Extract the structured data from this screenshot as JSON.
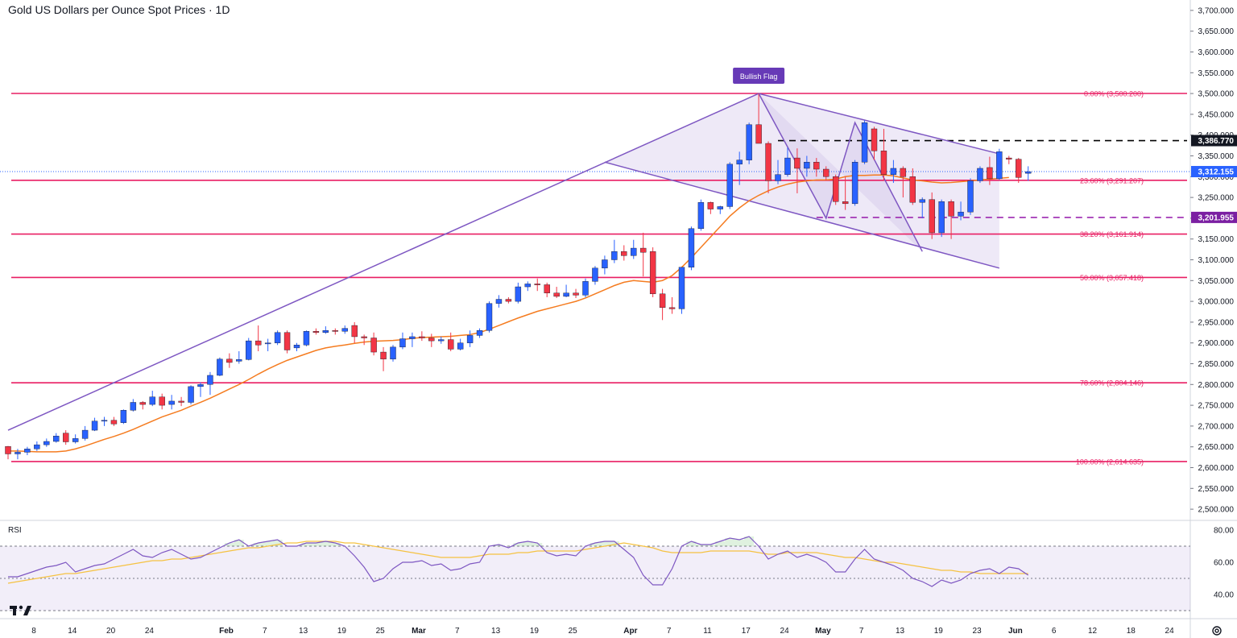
{
  "header": {
    "title": "Gold US Dollars per Ounce Spot Prices · 1D"
  },
  "colors": {
    "up": "#2962ff",
    "down": "#f23645",
    "fib": "#e91e63",
    "channel": "#7e57c2",
    "ema": "#f57c20",
    "rsi_line": "#7e57c2",
    "rsi_ma": "#f5c242",
    "resistance": "#000000",
    "support": "#9c27b0",
    "last_price": "#2962ff"
  },
  "chart_data": {
    "type": "candlestick",
    "price_axis": {
      "min": 2475,
      "max": 3725,
      "ticks": [
        "3,700.000",
        "3,650.000",
        "3,600.000",
        "3,550.000",
        "3,500.000",
        "3,450.000",
        "3,400.000",
        "3,350.000",
        "3,300.000",
        "3,250.000",
        "3,200.000",
        "3,150.000",
        "3,100.000",
        "3,050.000",
        "3,000.000",
        "2,950.000",
        "2,900.000",
        "2,850.000",
        "2,800.000",
        "2,750.000",
        "2,700.000",
        "2,650.000",
        "2,600.000",
        "2,550.000",
        "2,500.000"
      ],
      "tick_values": [
        3700,
        3650,
        3600,
        3550,
        3500,
        3450,
        3400,
        3350,
        3300,
        3250,
        3200,
        3150,
        3100,
        3050,
        3000,
        2950,
        2900,
        2850,
        2800,
        2750,
        2700,
        2650,
        2600,
        2550,
        2500
      ]
    },
    "time_axis": {
      "labels": [
        "8",
        "14",
        "20",
        "24",
        "Feb",
        "7",
        "13",
        "19",
        "25",
        "Mar",
        "7",
        "13",
        "19",
        "25",
        "Apr",
        "7",
        "11",
        "17",
        "24",
        "May",
        "7",
        "13",
        "19",
        "23",
        "Jun",
        "6",
        "12",
        "18",
        "24"
      ],
      "label_index": [
        0,
        4,
        8,
        12,
        20,
        24,
        28,
        32,
        36,
        40,
        44,
        48,
        52,
        56,
        62,
        66,
        70,
        74,
        78,
        82,
        86,
        90,
        94,
        98,
        102,
        106,
        110,
        114,
        118
      ]
    },
    "candles": [
      {
        "o": 2651,
        "h": 2652,
        "l": 2620,
        "c": 2633
      },
      {
        "o": 2633,
        "h": 2645,
        "l": 2620,
        "c": 2637
      },
      {
        "o": 2637,
        "h": 2650,
        "l": 2630,
        "c": 2645
      },
      {
        "o": 2645,
        "h": 2663,
        "l": 2640,
        "c": 2655
      },
      {
        "o": 2655,
        "h": 2670,
        "l": 2650,
        "c": 2663
      },
      {
        "o": 2663,
        "h": 2683,
        "l": 2660,
        "c": 2676
      },
      {
        "o": 2683,
        "h": 2690,
        "l": 2655,
        "c": 2662
      },
      {
        "o": 2662,
        "h": 2680,
        "l": 2658,
        "c": 2670
      },
      {
        "o": 2670,
        "h": 2700,
        "l": 2665,
        "c": 2690
      },
      {
        "o": 2690,
        "h": 2720,
        "l": 2688,
        "c": 2712
      },
      {
        "o": 2712,
        "h": 2722,
        "l": 2700,
        "c": 2714
      },
      {
        "o": 2714,
        "h": 2722,
        "l": 2700,
        "c": 2705
      },
      {
        "o": 2708,
        "h": 2740,
        "l": 2705,
        "c": 2738
      },
      {
        "o": 2738,
        "h": 2765,
        "l": 2735,
        "c": 2757
      },
      {
        "o": 2757,
        "h": 2760,
        "l": 2740,
        "c": 2752
      },
      {
        "o": 2752,
        "h": 2785,
        "l": 2748,
        "c": 2770
      },
      {
        "o": 2770,
        "h": 2778,
        "l": 2740,
        "c": 2750
      },
      {
        "o": 2752,
        "h": 2775,
        "l": 2740,
        "c": 2760
      },
      {
        "o": 2760,
        "h": 2770,
        "l": 2748,
        "c": 2757
      },
      {
        "o": 2757,
        "h": 2798,
        "l": 2752,
        "c": 2795
      },
      {
        "o": 2795,
        "h": 2805,
        "l": 2770,
        "c": 2800
      },
      {
        "o": 2800,
        "h": 2830,
        "l": 2775,
        "c": 2822
      },
      {
        "o": 2822,
        "h": 2865,
        "l": 2820,
        "c": 2861
      },
      {
        "o": 2861,
        "h": 2875,
        "l": 2840,
        "c": 2853
      },
      {
        "o": 2856,
        "h": 2880,
        "l": 2850,
        "c": 2860
      },
      {
        "o": 2860,
        "h": 2912,
        "l": 2858,
        "c": 2905
      },
      {
        "o": 2905,
        "h": 2942,
        "l": 2880,
        "c": 2895
      },
      {
        "o": 2898,
        "h": 2910,
        "l": 2880,
        "c": 2900
      },
      {
        "o": 2900,
        "h": 2930,
        "l": 2895,
        "c": 2925
      },
      {
        "o": 2925,
        "h": 2930,
        "l": 2875,
        "c": 2883
      },
      {
        "o": 2888,
        "h": 2900,
        "l": 2880,
        "c": 2895
      },
      {
        "o": 2895,
        "h": 2930,
        "l": 2892,
        "c": 2928
      },
      {
        "o": 2928,
        "h": 2935,
        "l": 2920,
        "c": 2925
      },
      {
        "o": 2925,
        "h": 2940,
        "l": 2922,
        "c": 2930
      },
      {
        "o": 2930,
        "h": 2935,
        "l": 2920,
        "c": 2928
      },
      {
        "o": 2928,
        "h": 2942,
        "l": 2922,
        "c": 2935
      },
      {
        "o": 2942,
        "h": 2950,
        "l": 2900,
        "c": 2915
      },
      {
        "o": 2915,
        "h": 2920,
        "l": 2895,
        "c": 2912
      },
      {
        "o": 2912,
        "h": 2925,
        "l": 2870,
        "c": 2878
      },
      {
        "o": 2878,
        "h": 2890,
        "l": 2832,
        "c": 2861
      },
      {
        "o": 2861,
        "h": 2895,
        "l": 2855,
        "c": 2890
      },
      {
        "o": 2890,
        "h": 2925,
        "l": 2885,
        "c": 2910
      },
      {
        "o": 2910,
        "h": 2925,
        "l": 2890,
        "c": 2915
      },
      {
        "o": 2915,
        "h": 2928,
        "l": 2905,
        "c": 2912
      },
      {
        "o": 2912,
        "h": 2922,
        "l": 2890,
        "c": 2905
      },
      {
        "o": 2905,
        "h": 2915,
        "l": 2898,
        "c": 2908
      },
      {
        "o": 2908,
        "h": 2925,
        "l": 2880,
        "c": 2885
      },
      {
        "o": 2885,
        "h": 2910,
        "l": 2882,
        "c": 2900
      },
      {
        "o": 2900,
        "h": 2930,
        "l": 2890,
        "c": 2918
      },
      {
        "o": 2918,
        "h": 2935,
        "l": 2912,
        "c": 2930
      },
      {
        "o": 2930,
        "h": 3000,
        "l": 2925,
        "c": 2995
      },
      {
        "o": 2995,
        "h": 3015,
        "l": 2985,
        "c": 3005
      },
      {
        "o": 3005,
        "h": 3010,
        "l": 2995,
        "c": 3000
      },
      {
        "o": 3000,
        "h": 3045,
        "l": 2995,
        "c": 3035
      },
      {
        "o": 3035,
        "h": 3048,
        "l": 3025,
        "c": 3042
      },
      {
        "o": 3042,
        "h": 3055,
        "l": 3025,
        "c": 3040
      },
      {
        "o": 3040,
        "h": 3045,
        "l": 3010,
        "c": 3020
      },
      {
        "o": 3020,
        "h": 3035,
        "l": 3008,
        "c": 3012
      },
      {
        "o": 3012,
        "h": 3040,
        "l": 3010,
        "c": 3020
      },
      {
        "o": 3020,
        "h": 3030,
        "l": 3008,
        "c": 3015
      },
      {
        "o": 3015,
        "h": 3055,
        "l": 3010,
        "c": 3048
      },
      {
        "o": 3048,
        "h": 3085,
        "l": 3040,
        "c": 3080
      },
      {
        "o": 3080,
        "h": 3110,
        "l": 3065,
        "c": 3100
      },
      {
        "o": 3100,
        "h": 3148,
        "l": 3092,
        "c": 3120
      },
      {
        "o": 3120,
        "h": 3135,
        "l": 3098,
        "c": 3110
      },
      {
        "o": 3110,
        "h": 3148,
        "l": 3102,
        "c": 3128
      },
      {
        "o": 3128,
        "h": 3165,
        "l": 3060,
        "c": 3118
      },
      {
        "o": 3120,
        "h": 3130,
        "l": 3010,
        "c": 3018
      },
      {
        "o": 3018,
        "h": 3030,
        "l": 2955,
        "c": 2985
      },
      {
        "o": 2985,
        "h": 3010,
        "l": 2970,
        "c": 2982
      },
      {
        "o": 2982,
        "h": 3080,
        "l": 2970,
        "c": 3082
      },
      {
        "o": 3082,
        "h": 3180,
        "l": 3075,
        "c": 3175
      },
      {
        "o": 3175,
        "h": 3245,
        "l": 3170,
        "c": 3238
      },
      {
        "o": 3238,
        "h": 3240,
        "l": 3210,
        "c": 3222
      },
      {
        "o": 3222,
        "h": 3230,
        "l": 3210,
        "c": 3228
      },
      {
        "o": 3228,
        "h": 3335,
        "l": 3222,
        "c": 3330
      },
      {
        "o": 3330,
        "h": 3360,
        "l": 3280,
        "c": 3340
      },
      {
        "o": 3340,
        "h": 3430,
        "l": 3330,
        "c": 3425
      },
      {
        "o": 3425,
        "h": 3500,
        "l": 3380,
        "c": 3380
      },
      {
        "o": 3380,
        "h": 3385,
        "l": 3260,
        "c": 3290
      },
      {
        "o": 3290,
        "h": 3340,
        "l": 3282,
        "c": 3305
      },
      {
        "o": 3305,
        "h": 3370,
        "l": 3300,
        "c": 3345
      },
      {
        "o": 3345,
        "h": 3368,
        "l": 3260,
        "c": 3320
      },
      {
        "o": 3320,
        "h": 3350,
        "l": 3300,
        "c": 3335
      },
      {
        "o": 3335,
        "h": 3345,
        "l": 3300,
        "c": 3318
      },
      {
        "o": 3318,
        "h": 3325,
        "l": 3290,
        "c": 3300
      },
      {
        "o": 3300,
        "h": 3305,
        "l": 3232,
        "c": 3240
      },
      {
        "o": 3240,
        "h": 3300,
        "l": 3220,
        "c": 3235
      },
      {
        "o": 3235,
        "h": 3340,
        "l": 3230,
        "c": 3335
      },
      {
        "o": 3335,
        "h": 3435,
        "l": 3330,
        "c": 3430
      },
      {
        "o": 3415,
        "h": 3420,
        "l": 3340,
        "c": 3362
      },
      {
        "o": 3362,
        "h": 3415,
        "l": 3290,
        "c": 3305
      },
      {
        "o": 3305,
        "h": 3340,
        "l": 3285,
        "c": 3320
      },
      {
        "o": 3320,
        "h": 3325,
        "l": 3250,
        "c": 3300
      },
      {
        "o": 3300,
        "h": 3320,
        "l": 3232,
        "c": 3238
      },
      {
        "o": 3238,
        "h": 3250,
        "l": 3200,
        "c": 3245
      },
      {
        "o": 3245,
        "h": 3262,
        "l": 3150,
        "c": 3165
      },
      {
        "o": 3165,
        "h": 3245,
        "l": 3155,
        "c": 3240
      },
      {
        "o": 3240,
        "h": 3245,
        "l": 3150,
        "c": 3205
      },
      {
        "o": 3205,
        "h": 3240,
        "l": 3195,
        "c": 3215
      },
      {
        "o": 3215,
        "h": 3296,
        "l": 3208,
        "c": 3290
      },
      {
        "o": 3290,
        "h": 3325,
        "l": 3285,
        "c": 3320
      },
      {
        "o": 3322,
        "h": 3348,
        "l": 3280,
        "c": 3295
      },
      {
        "o": 3295,
        "h": 3367,
        "l": 3292,
        "c": 3360
      },
      {
        "o": 3345,
        "h": 3350,
        "l": 3330,
        "c": 3342
      },
      {
        "o": 3342,
        "h": 3345,
        "l": 3285,
        "c": 3298
      },
      {
        "o": 3308,
        "h": 3325,
        "l": 3290,
        "c": 3312
      }
    ],
    "ema": [
      2640,
      2640,
      2639,
      2638,
      2638,
      2638,
      2640,
      2645,
      2652,
      2660,
      2668,
      2675,
      2683,
      2692,
      2702,
      2712,
      2722,
      2730,
      2738,
      2748,
      2757,
      2767,
      2778,
      2789,
      2800,
      2812,
      2825,
      2837,
      2848,
      2858,
      2866,
      2874,
      2882,
      2888,
      2892,
      2895,
      2899,
      2902,
      2904,
      2905,
      2906,
      2908,
      2911,
      2913,
      2914,
      2915,
      2916,
      2918,
      2920,
      2925,
      2933,
      2942,
      2951,
      2960,
      2968,
      2976,
      2982,
      2988,
      2994,
      3000,
      3008,
      3018,
      3028,
      3038,
      3046,
      3050,
      3048,
      3046,
      3050,
      3062,
      3082,
      3105,
      3130,
      3155,
      3180,
      3205,
      3225,
      3242,
      3255,
      3266,
      3275,
      3282,
      3287,
      3290,
      3292,
      3292,
      3294,
      3300,
      3303,
      3303,
      3304,
      3304,
      3302,
      3297,
      3292,
      3290,
      3287,
      3285,
      3286,
      3288,
      3290,
      3292,
      3294,
      3296,
      3298
    ],
    "levels": [
      {
        "label": "0.00% (3,500.200)",
        "value": 3500.2
      },
      {
        "label": "23.60% (3,291.207)",
        "value": 3291.207
      },
      {
        "label": "38.20% (3,161.914)",
        "value": 3161.914
      },
      {
        "label": "50.00% (3,057.418)",
        "value": 3057.418
      },
      {
        "label": "78.60% (2,804.146)",
        "value": 2804.146
      },
      {
        "label": "100.00% (2,614.635)",
        "value": 2614.635
      }
    ],
    "resistance": {
      "value": 3386.77,
      "label": "3,386.770"
    },
    "support": {
      "value": 3201.955,
      "label": "3,201.955"
    },
    "last_price": {
      "value": 3312.155,
      "label": "3,312.155"
    },
    "flag_pole": {
      "from": {
        "i": 0,
        "p": 2690
      },
      "to": {
        "i": 78,
        "p": 3500
      }
    },
    "flag_channel": {
      "upper": {
        "from": {
          "i": 78,
          "p": 3500
        },
        "to": {
          "i": 103,
          "p": 3355
        }
      },
      "lower": {
        "from": {
          "i": 62,
          "p": 3335
        },
        "to": {
          "i": 103,
          "p": 3080
        }
      }
    },
    "zigzag": [
      {
        "i": 78,
        "p": 3500
      },
      {
        "i": 85,
        "p": 3200
      },
      {
        "i": 88,
        "p": 3430
      },
      {
        "i": 95,
        "p": 3120
      }
    ],
    "pattern_label": "Bullish Flag",
    "rsi": {
      "label": "RSI",
      "ticks": [
        "80.00",
        "60.00",
        "40.00"
      ],
      "tick_values": [
        80,
        60,
        40
      ],
      "min": 28,
      "max": 82,
      "band_upper": 70,
      "band_lower": 30,
      "mid": 50,
      "values": [
        51,
        51,
        53,
        55,
        57,
        58,
        60,
        54,
        56,
        58,
        59,
        62,
        65,
        68,
        64,
        63,
        66,
        68,
        65,
        62,
        63,
        66,
        69,
        72,
        74,
        70,
        72,
        73,
        74,
        70,
        70,
        72,
        72,
        73,
        72,
        70,
        64,
        57,
        48,
        50,
        56,
        60,
        60,
        61,
        58,
        59,
        55,
        56,
        59,
        60,
        70,
        71,
        69,
        72,
        73,
        72,
        66,
        64,
        65,
        64,
        70,
        72,
        73,
        73,
        68,
        63,
        52,
        46,
        46,
        56,
        70,
        73,
        71,
        71,
        73,
        75,
        74,
        76,
        70,
        62,
        65,
        67,
        63,
        65,
        63,
        60,
        54,
        54,
        62,
        68,
        62,
        60,
        58,
        55,
        50,
        48,
        45,
        49,
        47,
        49,
        53,
        55,
        56,
        53,
        57,
        56,
        52
      ],
      "ma": [
        47,
        48,
        49,
        50,
        51,
        52,
        53,
        53,
        54,
        55,
        56,
        57,
        58,
        59,
        60,
        61,
        61,
        62,
        62,
        63,
        64,
        65,
        66,
        67,
        68,
        69,
        69,
        70,
        71,
        72,
        72,
        73,
        73,
        73,
        73,
        72,
        72,
        71,
        70,
        69,
        68,
        67,
        66,
        65,
        64,
        63,
        63,
        63,
        63,
        64,
        65,
        65,
        65,
        66,
        66,
        67,
        67,
        67,
        67,
        67,
        68,
        69,
        70,
        71,
        72,
        71,
        70,
        69,
        67,
        66,
        66,
        66,
        66,
        67,
        67,
        67,
        67,
        67,
        66,
        65,
        65,
        66,
        66,
        66,
        66,
        65,
        64,
        63,
        63,
        62,
        61,
        60,
        60,
        59,
        58,
        57,
        56,
        55,
        55,
        54,
        54,
        53,
        53,
        53,
        53,
        53,
        53
      ]
    }
  }
}
